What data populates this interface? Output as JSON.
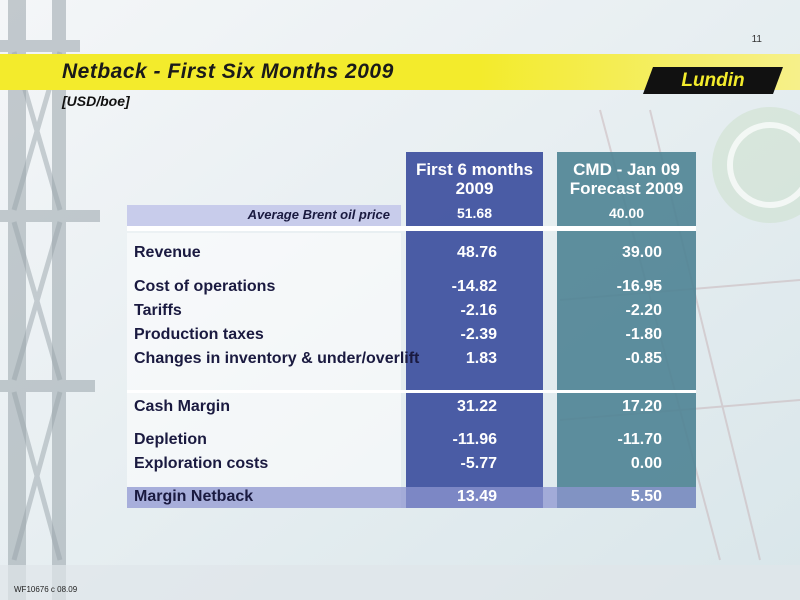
{
  "slide": {
    "page_number": "11",
    "title": "Netback - First Six Months 2009",
    "subtitle": "[USD/boe]",
    "logo_text": "Lundin",
    "footer_code": "WF10676 c 08.09"
  },
  "table": {
    "headers": {
      "col1": "First 6 months 2009",
      "col2": "CMD - Jan 09 Forecast 2009"
    },
    "brent": {
      "label": "Average Brent oil price",
      "col1": "51.68",
      "col2": "40.00"
    },
    "rows": [
      {
        "label": "Revenue",
        "col1": "48.76",
        "col2": "39.00"
      },
      {
        "label": "Cost of operations",
        "col1": "-14.82",
        "col2": "-16.95"
      },
      {
        "label": "Tariffs",
        "col1": "-2.16",
        "col2": "-2.20"
      },
      {
        "label": "Production taxes",
        "col1": "-2.39",
        "col2": "-1.80"
      },
      {
        "label": "Changes in inventory & under/overlift",
        "col1": "1.83",
        "col2": "-0.85"
      },
      {
        "label": "Cash Margin",
        "col1": "31.22",
        "col2": "17.20"
      },
      {
        "label": "Depletion",
        "col1": "-11.96",
        "col2": "-11.70"
      },
      {
        "label": "Exploration costs",
        "col1": "-5.77",
        "col2": "0.00"
      },
      {
        "label": "Margin Netback",
        "col1": "13.49",
        "col2": "5.50"
      }
    ]
  },
  "colors": {
    "title_band": "#f3eb2c",
    "col1": "#3d4f9e",
    "col2": "#4e8394",
    "label_band": "#c8cceb"
  }
}
